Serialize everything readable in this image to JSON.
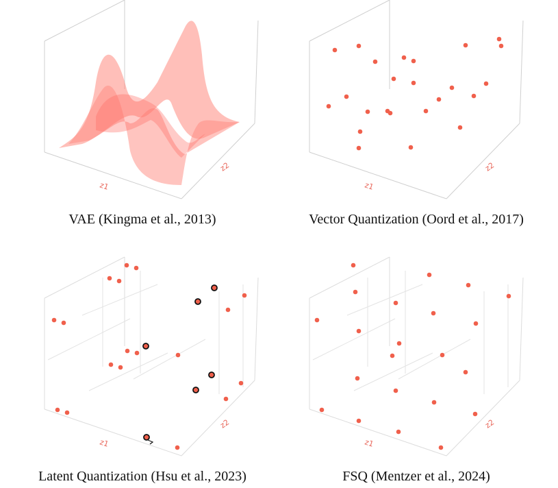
{
  "colors": {
    "point": "#f0604c",
    "surface": "#ff8a80",
    "outline": "#111111",
    "grid": "#d8d8d8"
  },
  "panels": [
    {
      "caption": "VAE (Kingma et al., 2013)",
      "xlabel": "z1",
      "ylabel": "z2"
    },
    {
      "caption": "Vector Quantization (Oord et al., 2017)",
      "xlabel": "z1",
      "ylabel": "z2"
    },
    {
      "caption": "Latent Quantization (Hsu et al., 2023)",
      "xlabel": "z1",
      "ylabel": "z2"
    },
    {
      "caption": "FSQ (Mentzer et al., 2024)",
      "xlabel": "z1",
      "ylabel": "z2"
    }
  ]
}
